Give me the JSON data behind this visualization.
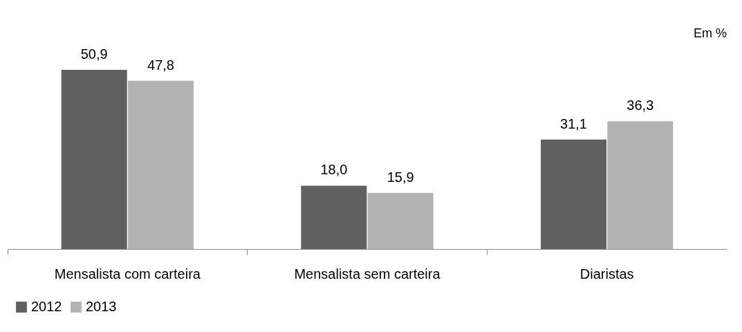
{
  "chart_data": {
    "type": "bar",
    "categories": [
      "Mensalista com carteira",
      "Mensalista sem carteira",
      "Diaristas"
    ],
    "series": [
      {
        "name": "2012",
        "color": "#606060",
        "values": [
          50.9,
          18.0,
          31.1
        ],
        "value_labels": [
          "50,9",
          "18,0",
          "31,1"
        ]
      },
      {
        "name": "2013",
        "color": "#b3b3b3",
        "values": [
          47.8,
          15.9,
          36.3
        ],
        "value_labels": [
          "47,8",
          "15,9",
          "36,3"
        ]
      }
    ],
    "annotations": [
      "Em %"
    ],
    "legend": "bottom",
    "grid": false
  }
}
